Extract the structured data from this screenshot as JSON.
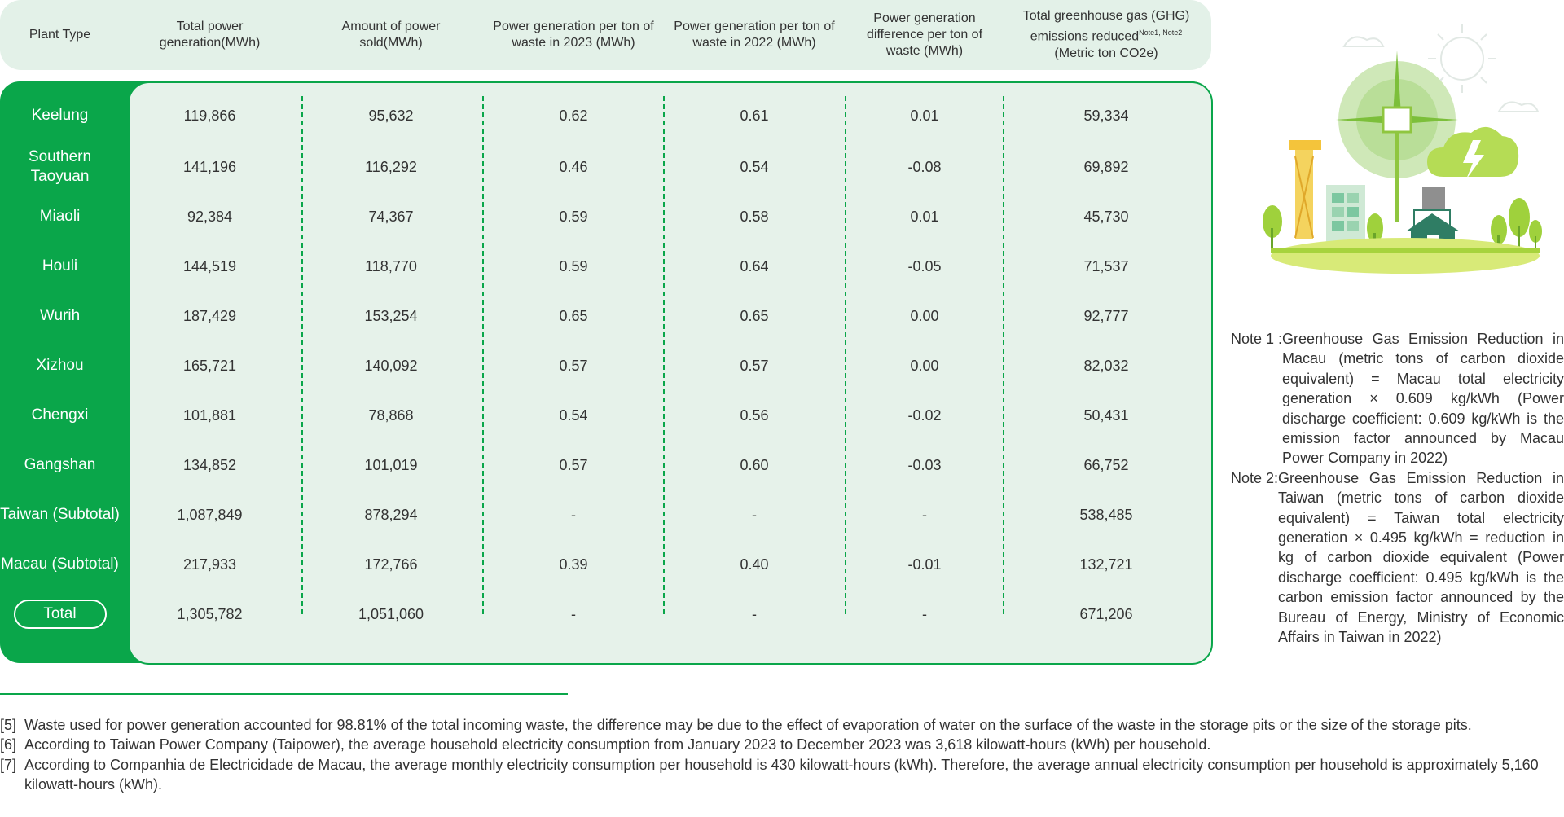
{
  "table": {
    "headers": [
      "Plant Type",
      "Total power generation(MWh)",
      "Amount of power sold(MWh)",
      "Power generation per ton of waste in 2023 (MWh)",
      "Power generation per ton of waste in 2022 (MWh)",
      "Power generation difference per ton of waste (MWh)",
      "Total greenhouse gas (GHG) emissions reduced"
    ],
    "ghg_header_sup": "Note1, Note2",
    "ghg_header_unit": "(Metric ton CO2e)",
    "rows": [
      {
        "plant": "Keelung",
        "values": [
          "119,866",
          "95,632",
          "0.62",
          "0.61",
          "0.01",
          "59,334"
        ]
      },
      {
        "plant": "Southern Taoyuan",
        "values": [
          "141,196",
          "116,292",
          "0.46",
          "0.54",
          "-0.08",
          "69,892"
        ]
      },
      {
        "plant": "Miaoli",
        "values": [
          "92,384",
          "74,367",
          "0.59",
          "0.58",
          "0.01",
          "45,730"
        ]
      },
      {
        "plant": "Houli",
        "values": [
          "144,519",
          "118,770",
          "0.59",
          "0.64",
          "-0.05",
          "71,537"
        ]
      },
      {
        "plant": "Wurih",
        "values": [
          "187,429",
          "153,254",
          "0.65",
          "0.65",
          "0.00",
          "92,777"
        ]
      },
      {
        "plant": "Xizhou",
        "values": [
          "165,721",
          "140,092",
          "0.57",
          "0.57",
          "0.00",
          "82,032"
        ]
      },
      {
        "plant": "Chengxi",
        "values": [
          "101,881",
          "78,868",
          "0.54",
          "0.56",
          "-0.02",
          "50,431"
        ]
      },
      {
        "plant": "Gangshan",
        "values": [
          "134,852",
          "101,019",
          "0.57",
          "0.60",
          "-0.03",
          "66,752"
        ]
      },
      {
        "plant": "Taiwan (Subtotal)",
        "values": [
          "1,087,849",
          "878,294",
          "-",
          "-",
          "-",
          "538,485"
        ]
      },
      {
        "plant": "Macau (Subtotal)",
        "values": [
          "217,933",
          "172,766",
          "0.39",
          "0.40",
          "-0.01",
          "132,721"
        ]
      },
      {
        "plant": "Total",
        "values": [
          "1,305,782",
          "1,051,060",
          "-",
          "-",
          "-",
          "671,206"
        ]
      }
    ]
  },
  "notes": [
    {
      "label": "Note 1 :",
      "text": "Greenhouse Gas Emission Reduction in Macau (metric tons of carbon dioxide equivalent) = Macau total electricity generation × 0.609 kg/kWh (Power discharge coefficient: 0.609 kg/kWh is the emission factor announced by Macau Power Company in 2022)"
    },
    {
      "label": "Note 2:",
      "text": "Greenhouse Gas Emission Reduction in Taiwan (metric tons of carbon dioxide equivalent) = Taiwan total electricity generation × 0.495 kg/kWh = reduction in kg of carbon dioxide equivalent (Power discharge coefficient: 0.495 kg/kWh is the carbon emission factor announced by the Bureau of Energy, Ministry of Economic Affairs in Taiwan in 2022)"
    }
  ],
  "footnotes": [
    {
      "num": "[5]",
      "text": "Waste used for power generation accounted for 98.81% of the total incoming waste, the difference may be due to the effect of evaporation of water on the surface of the waste in the storage pits or the size of the storage pits."
    },
    {
      "num": "[6]",
      "text": "According to Taiwan Power Company (Taipower), the average household electricity consumption from January 2023 to December 2023 was 3,618 kilowatt-hours (kWh) per household."
    },
    {
      "num": "[7]",
      "text": "According to Companhia de Electricidade de Macau, the average monthly electricity consumption per household is 430 kilowatt-hours (kWh). Therefore, the average annual electricity consumption per household is approximately 5,160 kilowatt-hours (kWh)."
    }
  ],
  "colors": {
    "accent": "#0aa64a",
    "panel": "#e6f2ea",
    "header": "#e3f1e8"
  },
  "illustration": {
    "icons": [
      "wind-turbine-icon",
      "power-tower-icon",
      "house-icon",
      "tree-icon",
      "cloud-lightning-icon",
      "sun-icon"
    ]
  }
}
